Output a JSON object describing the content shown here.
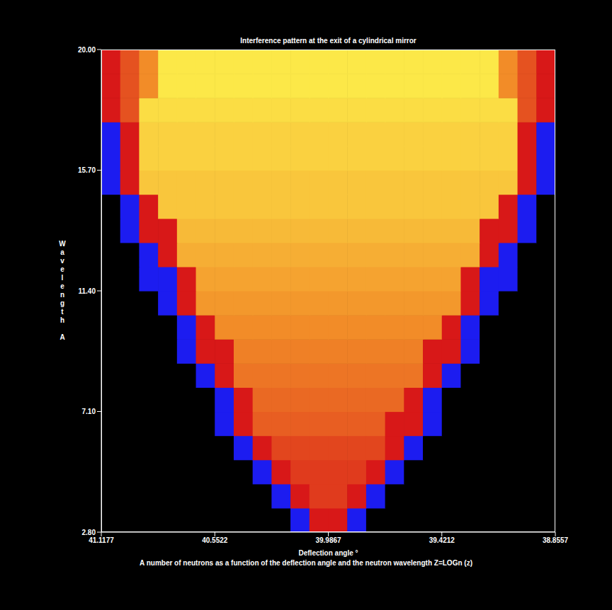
{
  "chart_data": {
    "type": "heatmap",
    "title": "Interference pattern at the exit of a cylindrical mirror",
    "x_label": "Deflection angle °",
    "y_label": "Wavelength A",
    "caption": "A number of neutrons as a function of the deflection angle and the neutron wavelength Z=LOGn (z)",
    "xlim": [
      41.1177,
      38.8557
    ],
    "xticks": [
      41.1177,
      40.5522,
      39.9867,
      39.4212,
      38.8557
    ],
    "ylim": [
      2.8,
      20
    ],
    "yticks": [
      {
        "value": 2.8,
        "label": "2.80"
      },
      {
        "value": 7.1,
        "label": "7.10"
      },
      {
        "value": 11.4,
        "label": "11.40"
      },
      {
        "value": 15.7,
        "label": "15.70"
      },
      {
        "value": 20,
        "label": "20.00"
      }
    ],
    "grid": false,
    "x": [
      41.0706,
      40.9763,
      40.8821,
      40.7878,
      40.6936,
      40.5993,
      40.5051,
      40.4108,
      40.3166,
      40.2223,
      40.1281,
      40.0338,
      39.9396,
      39.8453,
      39.7511,
      39.6568,
      39.5626,
      39.4683,
      39.3741,
      39.2798,
      39.1856,
      39.0913,
      38.9971,
      38.9028
    ],
    "y": [
      3.23,
      4.09,
      4.95,
      5.81,
      6.67,
      7.53,
      8.39,
      9.25,
      10.11,
      10.97,
      11.83,
      12.69,
      13.55,
      14.41,
      15.27,
      16.13,
      16.99,
      17.85,
      18.71,
      19.57
    ],
    "zlim": [
      0,
      4
    ],
    "z": [
      [
        0,
        0,
        0,
        0,
        0,
        0,
        0,
        0,
        0,
        0,
        1,
        2,
        2,
        1,
        0,
        0,
        0,
        0,
        0,
        0,
        0,
        0,
        0,
        0
      ],
      [
        0,
        0,
        0,
        0,
        0,
        0,
        0,
        0,
        0,
        1,
        2,
        2.3,
        2.3,
        2,
        1,
        0,
        0,
        0,
        0,
        0,
        0,
        0,
        0,
        0
      ],
      [
        0,
        0,
        0,
        0,
        0,
        0,
        0,
        0,
        1,
        2,
        2.3,
        2.3,
        2.3,
        2.3,
        2,
        1,
        0,
        0,
        0,
        0,
        0,
        0,
        0,
        0
      ],
      [
        0,
        0,
        0,
        0,
        0,
        0,
        0,
        1,
        2,
        2.4,
        2.4,
        2.4,
        2.4,
        2.4,
        2.4,
        2,
        1,
        0,
        0,
        0,
        0,
        0,
        0,
        0
      ],
      [
        0,
        0,
        0,
        0,
        0,
        0,
        1,
        2,
        2.6,
        2.6,
        2.6,
        2.6,
        2.6,
        2.6,
        2.6,
        2,
        2,
        1,
        0,
        0,
        0,
        0,
        0,
        0
      ],
      [
        0,
        0,
        0,
        0,
        0,
        0,
        1,
        2,
        2.7,
        2.7,
        2.7,
        2.7,
        2.7,
        2.7,
        2.7,
        2.7,
        2,
        1,
        0,
        0,
        0,
        0,
        0,
        0
      ],
      [
        0,
        0,
        0,
        0,
        0,
        1,
        2,
        2.8,
        2.8,
        2.8,
        2.8,
        2.8,
        2.8,
        2.8,
        2.8,
        2.8,
        2.8,
        2,
        1,
        0,
        0,
        0,
        0,
        0
      ],
      [
        0,
        0,
        0,
        0,
        1,
        2,
        2,
        2.9,
        2.9,
        2.9,
        2.9,
        2.9,
        2.9,
        2.9,
        2.9,
        2.9,
        2.9,
        2,
        2,
        1,
        0,
        0,
        0,
        0
      ],
      [
        0,
        0,
        0,
        0,
        1,
        2,
        3,
        3,
        3,
        3,
        3,
        3,
        3,
        3,
        3,
        3,
        3,
        3,
        2,
        1,
        0,
        0,
        0,
        0
      ],
      [
        0,
        0,
        0,
        1,
        2,
        3.1,
        3.1,
        3.1,
        3.1,
        3.1,
        3.1,
        3.1,
        3.1,
        3.1,
        3.1,
        3.1,
        3.1,
        3.1,
        3.1,
        2,
        1,
        0,
        0,
        0
      ],
      [
        0,
        0,
        1,
        1,
        2,
        3.2,
        3.2,
        3.2,
        3.2,
        3.2,
        3.2,
        3.2,
        3.2,
        3.2,
        3.2,
        3.2,
        3.2,
        3.2,
        3.2,
        2,
        1,
        1,
        0,
        0
      ],
      [
        0,
        0,
        1,
        2,
        3.3,
        3.3,
        3.3,
        3.3,
        3.3,
        3.3,
        3.3,
        3.3,
        3.3,
        3.3,
        3.3,
        3.3,
        3.3,
        3.3,
        3.3,
        3.3,
        2,
        1,
        0,
        0
      ],
      [
        0,
        1,
        2,
        2,
        3.4,
        3.4,
        3.4,
        3.4,
        3.4,
        3.4,
        3.4,
        3.4,
        3.4,
        3.4,
        3.4,
        3.4,
        3.4,
        3.4,
        3.4,
        3.4,
        2,
        2,
        1,
        0
      ],
      [
        0,
        1,
        2,
        3.5,
        3.5,
        3.5,
        3.5,
        3.5,
        3.5,
        3.5,
        3.5,
        3.5,
        3.5,
        3.5,
        3.5,
        3.5,
        3.5,
        3.5,
        3.5,
        3.5,
        3.5,
        2,
        1,
        0
      ],
      [
        1,
        2,
        3.5,
        3.5,
        3.5,
        3.5,
        3.5,
        3.5,
        3.5,
        3.5,
        3.5,
        3.5,
        3.5,
        3.5,
        3.5,
        3.5,
        3.5,
        3.5,
        3.5,
        3.5,
        3.5,
        3.5,
        2,
        1
      ],
      [
        1,
        2,
        3.6,
        3.6,
        3.6,
        3.6,
        3.6,
        3.6,
        3.6,
        3.6,
        3.6,
        3.6,
        3.6,
        3.6,
        3.6,
        3.6,
        3.6,
        3.6,
        3.6,
        3.6,
        3.6,
        3.6,
        2,
        1
      ],
      [
        1,
        2,
        3.6,
        3.6,
        3.6,
        3.6,
        3.6,
        3.6,
        3.6,
        3.6,
        3.6,
        3.6,
        3.6,
        3.6,
        3.6,
        3.6,
        3.6,
        3.6,
        3.6,
        3.6,
        3.6,
        3.6,
        2,
        1
      ],
      [
        2,
        2.5,
        3.7,
        3.7,
        3.7,
        3.7,
        3.7,
        3.7,
        3.7,
        3.7,
        3.7,
        3.7,
        3.7,
        3.7,
        3.7,
        3.7,
        3.7,
        3.7,
        3.7,
        3.7,
        3.7,
        3.7,
        2.5,
        2
      ],
      [
        2,
        2.5,
        3,
        3.8,
        3.8,
        3.8,
        3.8,
        3.8,
        3.8,
        3.8,
        3.8,
        3.8,
        3.8,
        3.8,
        3.8,
        3.8,
        3.8,
        3.8,
        3.8,
        3.8,
        3.8,
        3,
        2.5,
        2
      ],
      [
        2,
        2.5,
        3,
        3.8,
        3.8,
        3.8,
        3.8,
        3.8,
        3.8,
        3.8,
        3.8,
        3.8,
        3.8,
        3.8,
        3.8,
        3.8,
        3.8,
        3.8,
        3.8,
        3.8,
        3.8,
        3,
        2.5,
        2
      ]
    ]
  }
}
